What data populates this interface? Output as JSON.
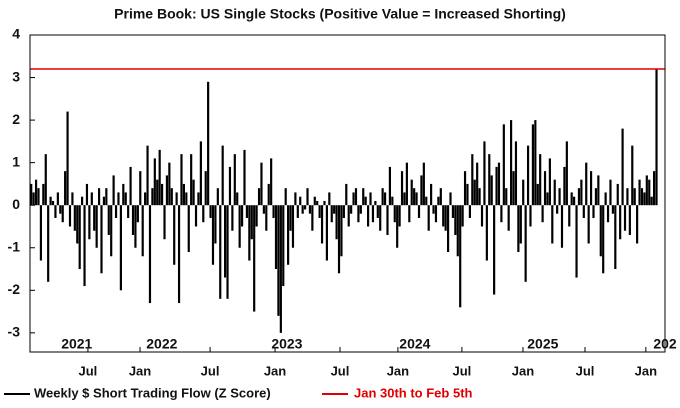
{
  "chart_data": {
    "type": "bar",
    "title": "Prime Book: US Single Stocks (Positive Value = Increased Shorting)",
    "categories": [
      null,
      null,
      null,
      null,
      null,
      null,
      null,
      null,
      null,
      null,
      null,
      null,
      null,
      null,
      null,
      null,
      null,
      null,
      null,
      null,
      null,
      null,
      null,
      null,
      null,
      null,
      null,
      null,
      null,
      null,
      null,
      null,
      null,
      null,
      null,
      null,
      null,
      null,
      null,
      null,
      null,
      null,
      null,
      null,
      null,
      null,
      null,
      null,
      null,
      null,
      null,
      null,
      null,
      null,
      null,
      null,
      null,
      null,
      null,
      null,
      null,
      null,
      null,
      null,
      null,
      null,
      null,
      null,
      null,
      null,
      null,
      null,
      null,
      null,
      null,
      null,
      null,
      null,
      null,
      null,
      null,
      null,
      null,
      null,
      null,
      null,
      null,
      null,
      null,
      null,
      null,
      null,
      null,
      null,
      null,
      null,
      null,
      null,
      null,
      null,
      null,
      null,
      null,
      null,
      null,
      null,
      null,
      null,
      null,
      null,
      null,
      null,
      null,
      null,
      null,
      null,
      null,
      null,
      null,
      null,
      null,
      null,
      null,
      null,
      null,
      null,
      null,
      null,
      null,
      null,
      null,
      null,
      null,
      null,
      null,
      null,
      null,
      null,
      null,
      null,
      null,
      null,
      null,
      null,
      null,
      null,
      null,
      null,
      null,
      null,
      null,
      null,
      null,
      null,
      null,
      null,
      null,
      null,
      null,
      null,
      null,
      null,
      null,
      null,
      null,
      null,
      null,
      null,
      null,
      null,
      null,
      null,
      null,
      null,
      null,
      null,
      null,
      null,
      null,
      null,
      null,
      null,
      null,
      null,
      null,
      null,
      null,
      null,
      null,
      null,
      null,
      null,
      null,
      null,
      null,
      null,
      null,
      null,
      null,
      null,
      null,
      null,
      null,
      null,
      null,
      null,
      null,
      null,
      null,
      null,
      null,
      null,
      null,
      null,
      null,
      null,
      null,
      null,
      null,
      null,
      null,
      null,
      null,
      null,
      null,
      null,
      null,
      null,
      null,
      null,
      null,
      null,
      null,
      null,
      null,
      null,
      null,
      null,
      null,
      null,
      null,
      null,
      null,
      null,
      null,
      null,
      null,
      null,
      null,
      null,
      null,
      null,
      null,
      null,
      null,
      null,
      null,
      null,
      null
    ],
    "series": [
      {
        "name": "Weekly $ Short Trading Flow (Z Score)",
        "color": "#000000",
        "values": [
          0.5,
          0.3,
          0.6,
          0.4,
          -1.3,
          0.5,
          1.2,
          -1.8,
          0.2,
          0.1,
          -0.3,
          0.3,
          -0.2,
          -0.4,
          0.8,
          2.2,
          -0.5,
          0.3,
          -0.6,
          -0.9,
          -1.5,
          0.2,
          -1.9,
          0.5,
          -0.8,
          0.3,
          -0.6,
          -1.0,
          0.4,
          -1.6,
          0.2,
          0.4,
          -0.7,
          -1.2,
          0.7,
          -0.3,
          0.3,
          -2.0,
          0.5,
          0.3,
          -0.3,
          0.9,
          -0.7,
          -1.0,
          -0.4,
          0.8,
          -1.2,
          0.3,
          1.4,
          -2.3,
          0.4,
          1.1,
          0.6,
          1.3,
          0.5,
          -0.8,
          0.7,
          1.0,
          0.4,
          -1.4,
          0.3,
          -2.3,
          1.2,
          0.5,
          0.3,
          -1.1,
          1.2,
          0.6,
          -0.5,
          0.3,
          1.5,
          -0.4,
          0.8,
          2.9,
          -0.3,
          -1.4,
          -0.9,
          0.4,
          -2.2,
          1.4,
          -1.7,
          -2.2,
          0.9,
          -0.6,
          1.2,
          0.3,
          -1.0,
          -0.5,
          1.3,
          -0.3,
          -1.3,
          -0.8,
          -2.5,
          -0.5,
          0.4,
          1.0,
          -0.2,
          -0.6,
          0.5,
          1.1,
          -0.3,
          -1.5,
          -2.6,
          -3.0,
          -1.9,
          0.4,
          -1.4,
          -0.6,
          -1.0,
          0.3,
          -0.3,
          0.2,
          -0.2,
          -0.1,
          0.4,
          -0.2,
          -0.6,
          0.2,
          0.1,
          -0.3,
          -0.9,
          0.1,
          -1.3,
          0.3,
          -0.4,
          -0.2,
          -0.8,
          -1.6,
          -1.2,
          -0.3,
          0.5,
          -0.5,
          -0.2,
          0.3,
          0.4,
          -0.4,
          -0.2,
          0.4,
          0.2,
          -0.5,
          0.3,
          -0.4,
          0.1,
          -0.3,
          -0.6,
          0.4,
          0.3,
          -0.7,
          0.9,
          0.2,
          -0.4,
          -1.0,
          -0.5,
          0.8,
          0.3,
          1.0,
          -0.4,
          0.6,
          0.4,
          0.3,
          -0.3,
          0.7,
          1.0,
          0.2,
          -0.6,
          0.5,
          -0.2,
          -0.4,
          0.2,
          0.4,
          -0.5,
          -0.6,
          -1.1,
          0.3,
          -0.3,
          -0.7,
          -1.2,
          -2.4,
          -0.5,
          0.8,
          0.5,
          -0.3,
          1.2,
          0.6,
          1.0,
          0.4,
          -0.5,
          1.5,
          -1.3,
          1.2,
          0.7,
          -2.1,
          0.9,
          1.0,
          -0.4,
          1.9,
          0.4,
          -0.6,
          2.0,
          0.8,
          1.5,
          -1.1,
          -0.9,
          0.6,
          -1.8,
          1.4,
          -0.5,
          1.9,
          2.0,
          0.5,
          1.2,
          -0.4,
          0.8,
          0.3,
          1.1,
          -0.9,
          0.6,
          -0.2,
          0.4,
          -1.0,
          0.9,
          1.5,
          -0.5,
          0.3,
          0.2,
          -1.7,
          0.4,
          0.6,
          -0.3,
          1.0,
          -0.9,
          0.8,
          -0.3,
          0.4,
          0.7,
          -1.2,
          -1.6,
          0.3,
          -0.4,
          0.6,
          -0.2,
          -1.5,
          0.5,
          -0.8,
          1.8,
          -0.6,
          0.4,
          -0.7,
          1.4,
          0.4,
          -0.9,
          0.6,
          0.4,
          0.3,
          0.7,
          0.6,
          0.2,
          0.8,
          3.2
        ]
      }
    ],
    "reference_line": {
      "name": "Jan 30th to Feb 5th",
      "color": "#e00000",
      "value": 3.2
    },
    "xlim": [
      -0.5,
      261.5
    ],
    "xticks": [
      {
        "value": 23.4,
        "label": "Jul"
      },
      {
        "value": 44.9,
        "label": "Jan"
      },
      {
        "value": 73.8,
        "label": "Jul"
      },
      {
        "value": 100.6,
        "label": "Jan"
      },
      {
        "value": 127.4,
        "label": "Jul"
      },
      {
        "value": 151.3,
        "label": "Jan"
      },
      {
        "value": 177.7,
        "label": "Jul"
      },
      {
        "value": 202.9,
        "label": "Jan"
      },
      {
        "value": 228.5,
        "label": "Jul"
      },
      {
        "value": 253.6,
        "label": "Jan"
      }
    ],
    "year_ticks": [
      {
        "value": 18.8,
        "label": "2021"
      },
      {
        "value": 53.9,
        "label": "2022"
      },
      {
        "value": 105.5,
        "label": "2023"
      },
      {
        "value": 158.3,
        "label": "2024"
      },
      {
        "value": 211.1,
        "label": "2025"
      },
      {
        "value": 261.5,
        "label": "202"
      }
    ],
    "ylim": [
      -3.45,
      4
    ],
    "yticks": [
      4,
      3,
      2,
      1,
      0,
      -1,
      -2,
      -3
    ],
    "legend": "bottom-left"
  }
}
